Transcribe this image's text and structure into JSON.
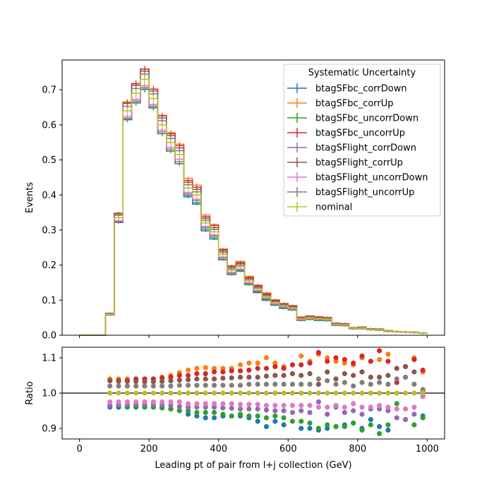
{
  "chart_data": [
    {
      "type": "line",
      "subtype": "step-histogram",
      "ylabel": "Events",
      "xlim": [
        -50,
        1050
      ],
      "ylim": [
        0,
        0.785
      ],
      "yticks": [
        0.0,
        0.1,
        0.2,
        0.3,
        0.4,
        0.5,
        0.6,
        0.7
      ],
      "ytick_labels": [
        "0.0",
        "0.1",
        "0.2",
        "0.3",
        "0.4",
        "0.5",
        "0.6",
        "0.7"
      ],
      "bin_edges": [
        0,
        25,
        50,
        75,
        100,
        125,
        150,
        175,
        200,
        225,
        250,
        275,
        300,
        325,
        350,
        375,
        400,
        425,
        450,
        475,
        500,
        525,
        550,
        575,
        600,
        625,
        650,
        675,
        700,
        725,
        750,
        775,
        800,
        825,
        850,
        875,
        900,
        925,
        950,
        975,
        1000
      ],
      "nominal": [
        0.0,
        0.0,
        0.0,
        0.06,
        0.335,
        0.64,
        0.69,
        0.73,
        0.675,
        0.6,
        0.55,
        0.515,
        0.42,
        0.4,
        0.32,
        0.295,
        0.23,
        0.185,
        0.195,
        0.155,
        0.132,
        0.11,
        0.093,
        0.084,
        0.078,
        0.047,
        0.05,
        0.047,
        0.046,
        0.031,
        0.03,
        0.02,
        0.021,
        0.017,
        0.016,
        0.012,
        0.01,
        0.009,
        0.008,
        0.006
      ],
      "legend": {
        "title": "Systematic Uncertainty",
        "position": "upper right"
      },
      "series": [
        {
          "name": "btagSFbc_corrDown",
          "color": "#1f77b4",
          "ratio": [
            null,
            null,
            null,
            0.96,
            0.96,
            0.96,
            0.96,
            0.96,
            0.96,
            0.958,
            0.955,
            0.95,
            0.94,
            0.935,
            0.93,
            0.93,
            0.935,
            0.935,
            0.935,
            0.93,
            0.92,
            0.905,
            0.92,
            0.91,
            null,
            0.9,
            0.9,
            0.895,
            0.9,
            0.905,
            0.91,
            0.915,
            0.9,
            0.925,
            0.905,
            0.895,
            null,
            null,
            null,
            0.935
          ]
        },
        {
          "name": "btagSFbc_corrUp",
          "color": "#ff7f0e",
          "ratio": [
            null,
            null,
            null,
            1.04,
            1.04,
            1.04,
            1.04,
            1.04,
            1.04,
            1.045,
            1.05,
            1.058,
            1.065,
            1.07,
            1.072,
            1.07,
            1.07,
            1.07,
            1.08,
            1.085,
            1.085,
            1.1,
            1.085,
            1.075,
            null,
            1.105,
            1.09,
            1.11,
            1.1,
            1.09,
            1.085,
            1.08,
            1.1,
            1.09,
            1.095,
            1.11,
            null,
            null,
            1.1,
            1.06
          ]
        },
        {
          "name": "btagSFbc_uncorrDown",
          "color": "#2ca02c",
          "ratio": [
            null,
            null,
            null,
            0.965,
            0.965,
            0.962,
            0.962,
            0.962,
            0.962,
            0.958,
            0.955,
            0.95,
            0.95,
            0.945,
            0.945,
            0.945,
            0.94,
            0.935,
            0.94,
            0.935,
            0.935,
            0.93,
            0.935,
            0.93,
            0.92,
            0.92,
            0.915,
            0.9,
            0.91,
            0.905,
            0.905,
            0.915,
            0.895,
            0.91,
            0.885,
            0.91,
            0.97,
            0.925,
            0.91,
            0.93
          ]
        },
        {
          "name": "btagSFbc_uncorrUp",
          "color": "#d62728",
          "ratio": [
            null,
            null,
            null,
            1.035,
            1.035,
            1.035,
            1.04,
            1.04,
            1.04,
            1.043,
            1.045,
            1.05,
            1.05,
            1.055,
            1.055,
            1.06,
            1.06,
            1.063,
            1.063,
            1.065,
            1.07,
            1.07,
            1.075,
            1.07,
            1.08,
            1.08,
            1.085,
            1.115,
            1.09,
            1.1,
            1.095,
            1.085,
            1.105,
            1.09,
            1.12,
            1.09,
            1.03,
            1.075,
            1.095,
            1.065
          ]
        },
        {
          "name": "btagSFlight_corrDown",
          "color": "#9467bd",
          "ratio": [
            null,
            null,
            null,
            0.965,
            0.967,
            0.967,
            0.968,
            0.968,
            0.968,
            0.967,
            0.965,
            0.962,
            0.96,
            0.96,
            0.96,
            0.96,
            0.958,
            0.957,
            0.955,
            0.955,
            0.955,
            0.952,
            0.95,
            0.95,
            0.945,
            0.95,
            0.945,
            0.975,
            0.94,
            0.96,
            0.945,
            0.95,
            0.94,
            0.955,
            0.955,
            0.95,
            0.93,
            0.925,
            0.94,
            0.995
          ]
        },
        {
          "name": "btagSFlight_corrUp",
          "color": "#8c564b",
          "ratio": [
            null,
            null,
            null,
            1.035,
            1.033,
            1.033,
            1.033,
            1.032,
            1.032,
            1.033,
            1.035,
            1.037,
            1.038,
            1.04,
            1.04,
            1.04,
            1.042,
            1.043,
            1.045,
            1.045,
            1.045,
            1.048,
            1.05,
            1.05,
            1.055,
            1.05,
            1.055,
            1.025,
            1.06,
            1.04,
            1.055,
            1.05,
            1.06,
            1.045,
            1.045,
            1.05,
            1.07,
            1.075,
            1.06,
            1.005
          ]
        },
        {
          "name": "btagSFlight_uncorrDown",
          "color": "#e377c2",
          "ratio": [
            null,
            null,
            null,
            0.975,
            0.975,
            0.975,
            0.975,
            0.975,
            0.975,
            0.975,
            0.975,
            0.975,
            0.97,
            0.97,
            0.97,
            0.97,
            0.97,
            0.97,
            0.968,
            0.968,
            0.968,
            0.965,
            0.965,
            0.965,
            0.965,
            0.965,
            0.965,
            0.96,
            0.96,
            0.965,
            0.96,
            0.97,
            0.96,
            0.96,
            0.965,
            0.96,
            0.955,
            0.955,
            0.96,
            0.99
          ]
        },
        {
          "name": "btagSFlight_uncorrUp",
          "color": "#7f7f7f",
          "ratio": [
            null,
            null,
            null,
            1.02,
            1.02,
            1.02,
            1.02,
            1.02,
            1.02,
            1.02,
            1.02,
            1.022,
            1.022,
            1.022,
            1.022,
            1.022,
            1.022,
            1.022,
            1.022,
            1.025,
            1.025,
            1.025,
            1.025,
            1.025,
            1.025,
            1.025,
            1.025,
            1.04,
            1.035,
            1.025,
            1.03,
            1.02,
            1.03,
            1.025,
            1.03,
            1.025,
            1.04,
            1.045,
            1.025,
            1.01
          ]
        },
        {
          "name": "nominal",
          "color": "#bcbd22",
          "ratio": [
            null,
            null,
            null,
            1.0,
            1.0,
            1.0,
            1.0,
            1.0,
            1.0,
            1.0,
            1.0,
            1.0,
            1.0,
            1.0,
            1.0,
            1.0,
            1.0,
            1.0,
            1.0,
            1.0,
            1.0,
            1.0,
            1.0,
            1.0,
            1.0,
            1.0,
            1.0,
            1.0,
            1.0,
            1.0,
            1.0,
            1.0,
            1.0,
            1.0,
            1.0,
            1.0,
            1.0,
            1.0,
            1.0,
            1.0
          ]
        }
      ]
    },
    {
      "type": "scatter",
      "subtype": "ratio",
      "xlabel": "Leading pt of pair from l+j collection (GeV)",
      "ylabel": "Ratio",
      "xlim": [
        -50,
        1050
      ],
      "ylim": [
        0.87,
        1.13
      ],
      "xticks": [
        0,
        200,
        400,
        600,
        800,
        1000
      ],
      "xtick_labels": [
        "0",
        "200",
        "400",
        "600",
        "800",
        "1000"
      ],
      "yticks": [
        0.9,
        1.0,
        1.1
      ],
      "ytick_labels": [
        "0.9",
        "1.0",
        "1.1"
      ],
      "reference_line": 1.0
    }
  ]
}
